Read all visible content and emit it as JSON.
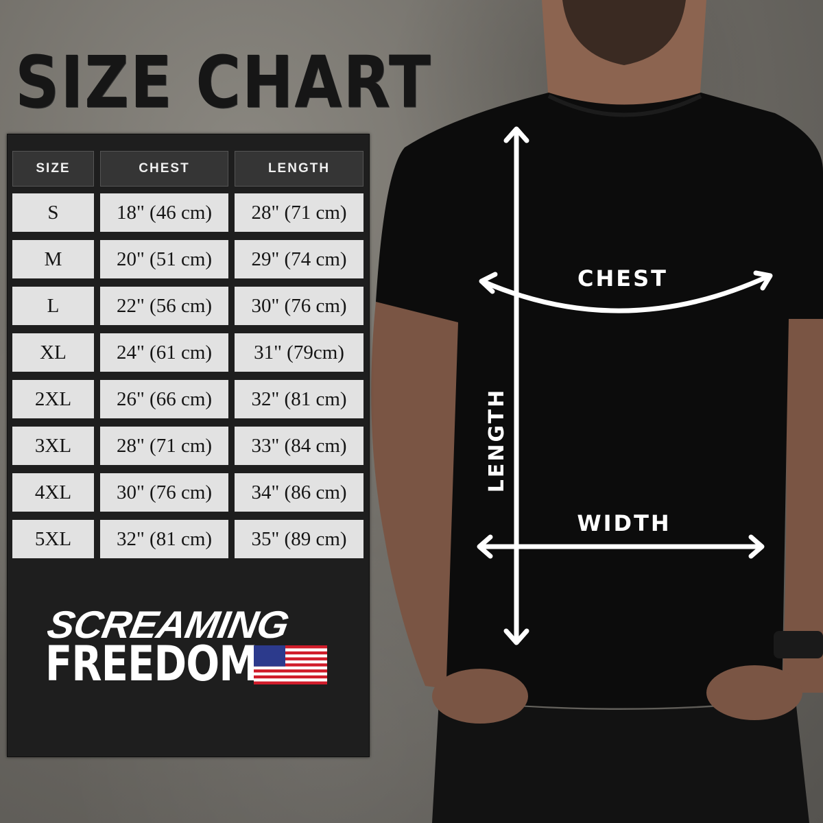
{
  "title": "SIZE CHART",
  "table": {
    "headers": [
      "SIZE",
      "CHEST",
      "LENGTH"
    ],
    "rows": [
      {
        "size": "S",
        "chest": "18\" (46 cm)",
        "length": "28\" (71 cm)"
      },
      {
        "size": "M",
        "chest": "20\" (51 cm)",
        "length": "29\" (74 cm)"
      },
      {
        "size": "L",
        "chest": "22\" (56 cm)",
        "length": "30\" (76 cm)"
      },
      {
        "size": "XL",
        "chest": "24\" (61 cm)",
        "length": "31\" (79cm)"
      },
      {
        "size": "2XL",
        "chest": "26\" (66 cm)",
        "length": "32\" (81 cm)"
      },
      {
        "size": "3XL",
        "chest": "28\" (71 cm)",
        "length": "33\" (84 cm)"
      },
      {
        "size": "4XL",
        "chest": "30\" (76 cm)",
        "length": "34\" (86 cm)"
      },
      {
        "size": "5XL",
        "chest": "32\" (81 cm)",
        "length": "35\" (89 cm)"
      }
    ]
  },
  "logo": {
    "line1": "SCREAMING",
    "line2": "FREEDOM",
    "icon": "us-flag-icon"
  },
  "diagram": {
    "chest_label": "CHEST",
    "width_label": "WIDTH",
    "length_label": "LENGTH"
  },
  "colors": {
    "panel": "#1e1e1e",
    "header_cell": "#353535",
    "data_cell": "#e2e2e2",
    "shirt": "#0c0c0c",
    "arrows": "#ffffff"
  }
}
